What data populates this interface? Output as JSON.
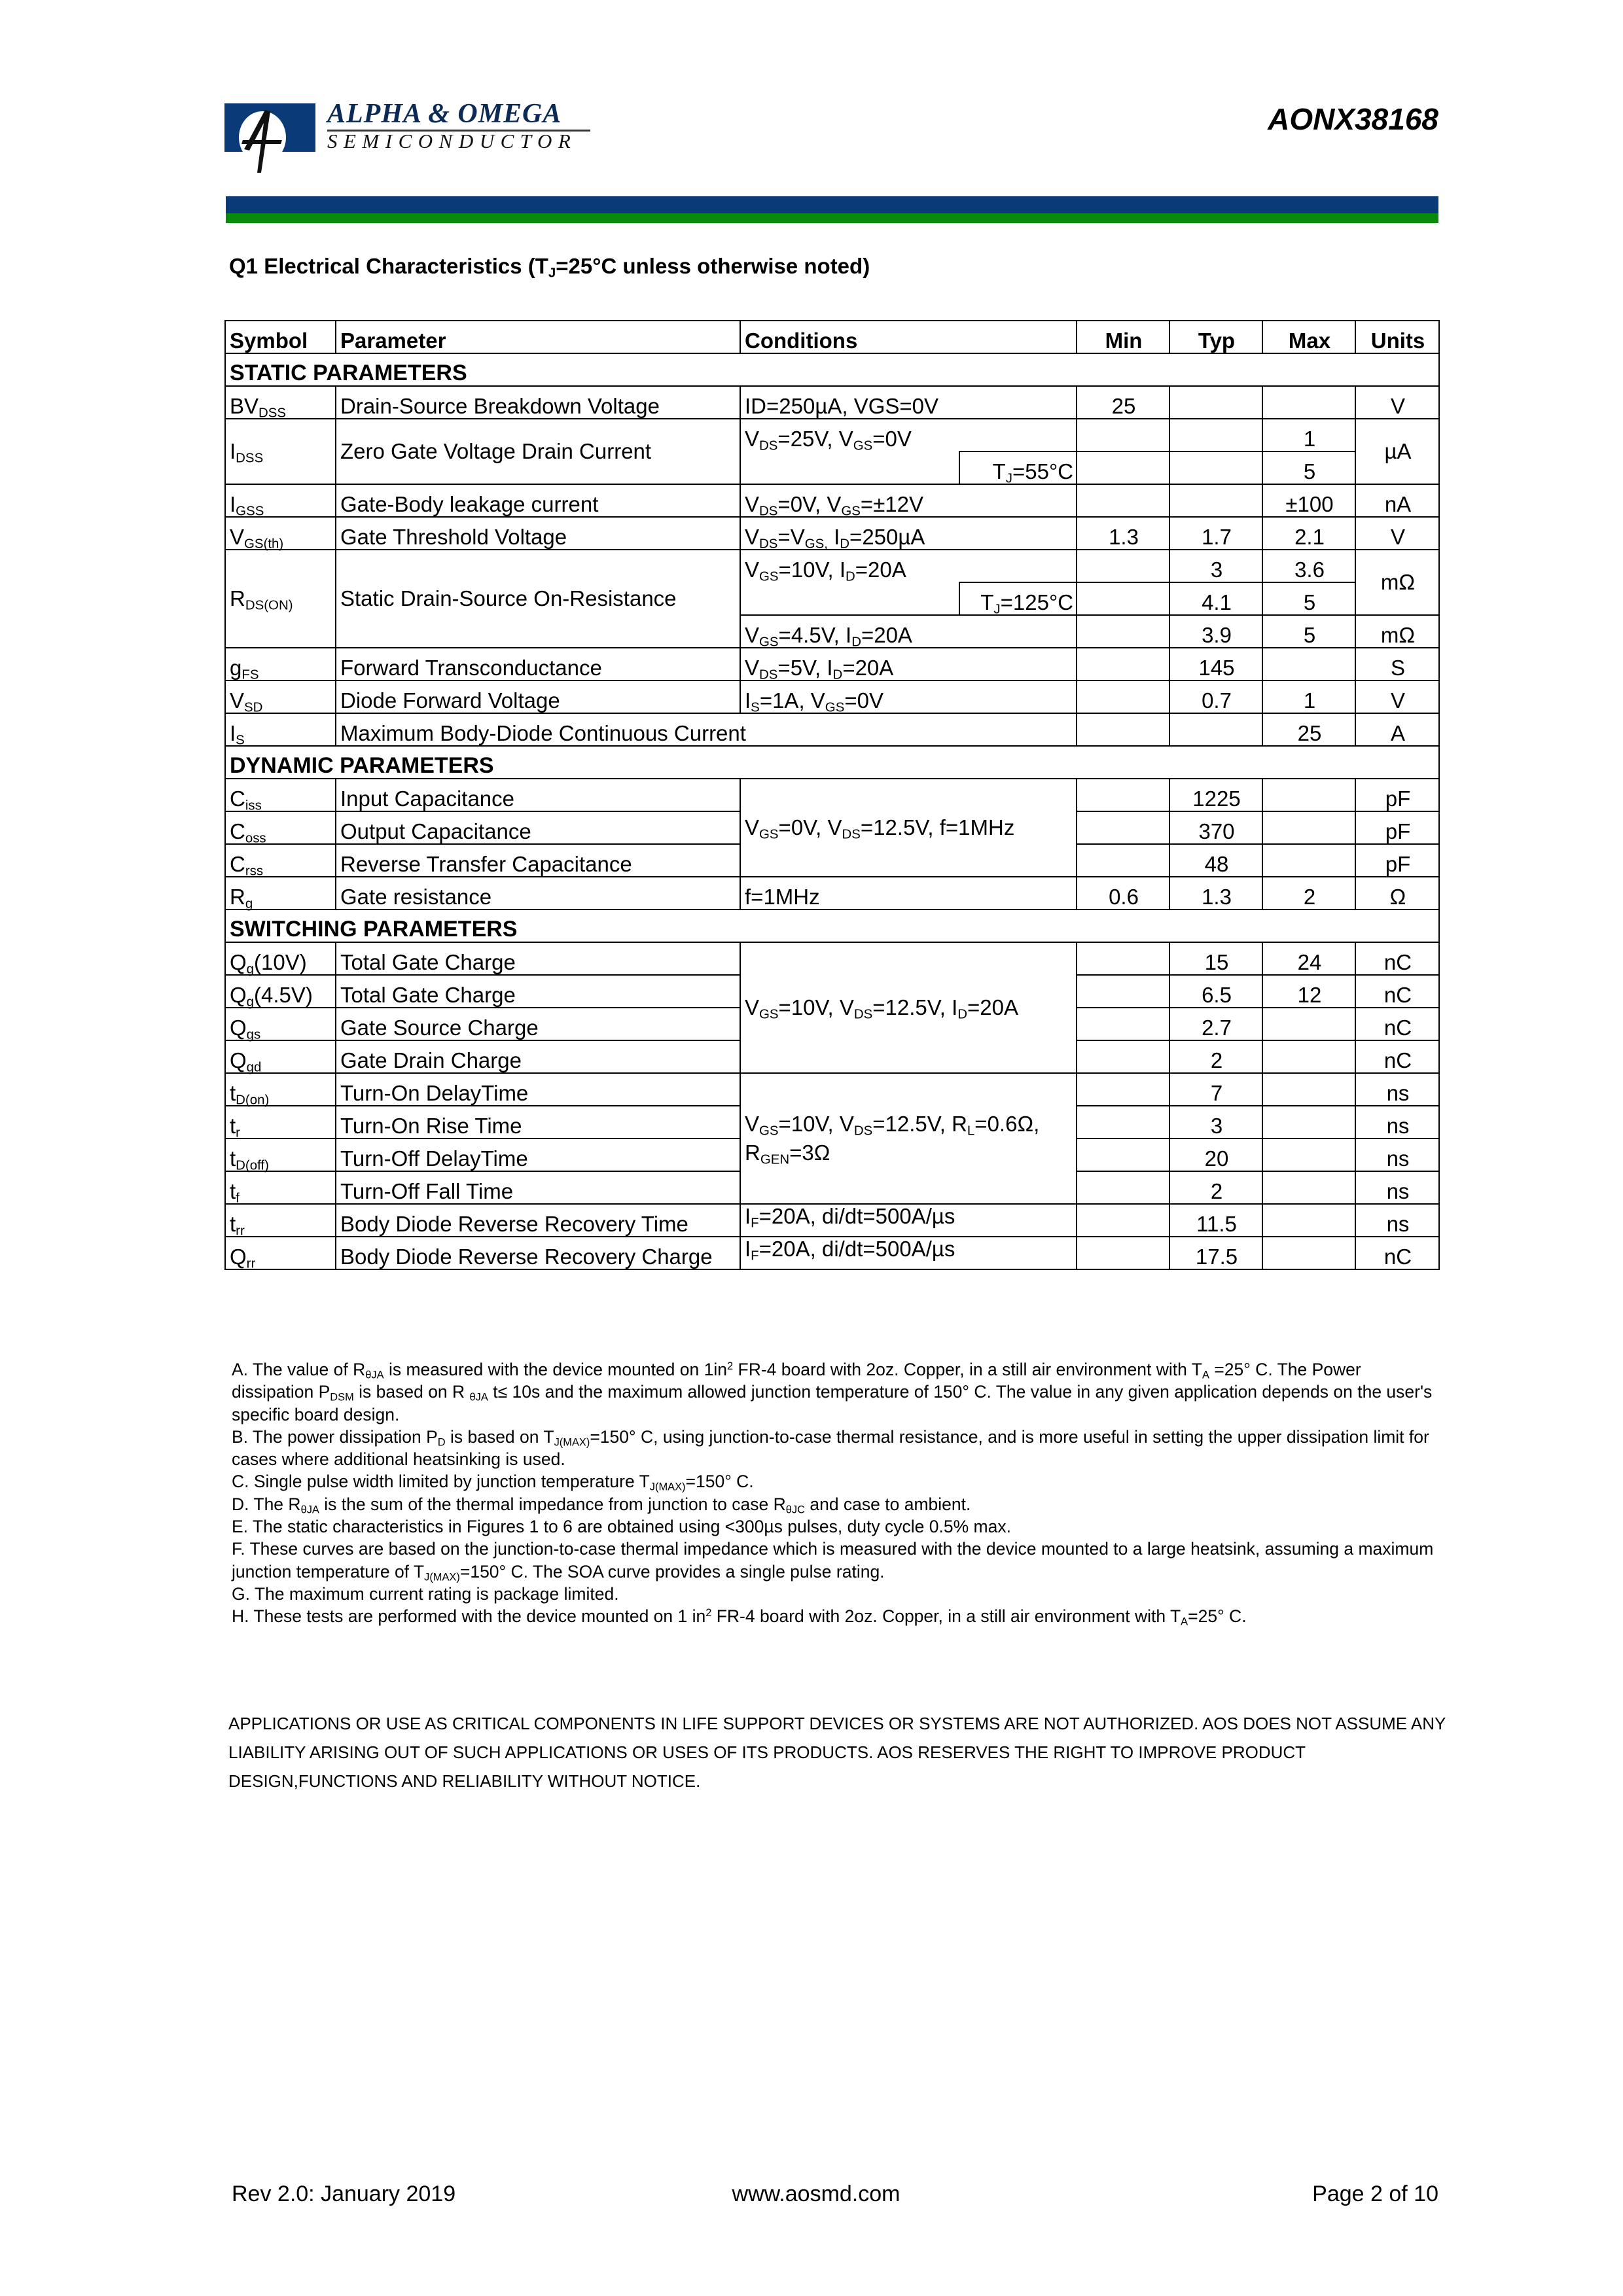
{
  "header": {
    "logo_name": "ALPHA & OMEGA",
    "logo_sub": "SEMICONDUCTOR",
    "part_number": "AONX38168",
    "colors": {
      "brand_blue": "#0b3a78",
      "brand_green": "#0a8a0a"
    }
  },
  "section_title": "Q1 Electrical Characteristics (T_{J}=25°C unless otherwise noted)",
  "table": {
    "headers": {
      "symbol": "Symbol",
      "parameter": "Parameter",
      "conditions": "Conditions",
      "min": "Min",
      "typ": "Typ",
      "max": "Max",
      "units": "Units"
    },
    "sections": {
      "static": "STATIC PARAMETERS",
      "dynamic": "DYNAMIC PARAMETERS",
      "switching": "SWITCHING PARAMETERS"
    },
    "rows": {
      "bvdss": {
        "symbol": "BV_{DSS}",
        "parameter": "Drain-Source Breakdown Voltage",
        "conditions": "ID=250µA, VGS=0V",
        "min": "25",
        "units": "V"
      },
      "idss": {
        "symbol": "I_{DSS}",
        "parameter": "Zero Gate Voltage Drain Current",
        "conditions": "V_{DS}=25V, V_{GS}=0V",
        "max": "1",
        "units": "µA"
      },
      "idss_hot": {
        "conditions_tj": "T_{J}=55°C",
        "max": "5"
      },
      "igss": {
        "symbol": "I_{GSS}",
        "parameter": "Gate-Body leakage current",
        "conditions": "V_{DS}=0V, V_{GS}=±12V",
        "max": "±100",
        "units": "nA"
      },
      "vgsth": {
        "symbol": "V_{GS(th)}",
        "parameter": "Gate Threshold Voltage",
        "conditions": "V_{DS}=V_{GS,} I_{D}=250µA",
        "min": "1.3",
        "typ": "1.7",
        "max": "2.1",
        "units": "V"
      },
      "rdson": {
        "symbol": "R_{DS(ON)}",
        "parameter": "Static Drain-Source On-Resistance",
        "conditions": "V_{GS}=10V, I_{D}=20A",
        "typ": "3",
        "max": "3.6",
        "units": "mΩ"
      },
      "rdson_hot": {
        "conditions_tj": "T_{J}=125°C",
        "typ": "4.1",
        "max": "5"
      },
      "rdson_45": {
        "conditions": "V_{GS}=4.5V, I_{D}=20A",
        "typ": "3.9",
        "max": "5",
        "units": "mΩ"
      },
      "gfs": {
        "symbol": "g_{FS}",
        "parameter": "Forward Transconductance",
        "conditions": "V_{DS}=5V, I_{D}=20A",
        "typ": "145",
        "units": "S"
      },
      "vsd": {
        "symbol": "V_{SD}",
        "parameter": "Diode Forward Voltage",
        "conditions": "I_{S}=1A, V_{GS}=0V",
        "typ": "0.7",
        "max": "1",
        "units": "V"
      },
      "is": {
        "symbol": "I_{S}",
        "parameter": "Maximum Body-Diode Continuous Current",
        "max": "25",
        "units": "A"
      },
      "ciss": {
        "symbol": "C_{iss}",
        "parameter": "Input Capacitance",
        "conditions": "V_{GS}=0V, V_{DS}=12.5V, f=1MHz",
        "typ": "1225",
        "units": "pF"
      },
      "coss": {
        "symbol": "C_{oss}",
        "parameter": "Output Capacitance",
        "typ": "370",
        "units": "pF"
      },
      "crss": {
        "symbol": "C_{rss}",
        "parameter": "Reverse Transfer Capacitance",
        "typ": "48",
        "units": "pF"
      },
      "rg": {
        "symbol": "R_{g}",
        "parameter": "Gate resistance",
        "conditions": "f=1MHz",
        "min": "0.6",
        "typ": "1.3",
        "max": "2",
        "units": "Ω"
      },
      "qg10": {
        "symbol": "Q_{g}(10V)",
        "parameter": "Total Gate Charge",
        "conditions": "V_{GS}=10V, V_{DS}=12.5V, I_{D}=20A",
        "typ": "15",
        "max": "24",
        "units": "nC"
      },
      "qg45": {
        "symbol": "Q_{g}(4.5V)",
        "parameter": "Total Gate Charge",
        "typ": "6.5",
        "max": "12",
        "units": "nC"
      },
      "qgs": {
        "symbol": "Q_{gs}",
        "parameter": "Gate Source Charge",
        "typ": "2.7",
        "units": "nC"
      },
      "qgd": {
        "symbol": "Q_{gd}",
        "parameter": "Gate Drain Charge",
        "typ": "2",
        "units": "nC"
      },
      "tdon": {
        "symbol": "t_{D(on)}",
        "parameter": "Turn-On DelayTime",
        "conditions": "V_{GS}=10V, V_{DS}=12.5V, R_{L}=0.6Ω,",
        "conditions_2": "R_{GEN}=3Ω",
        "typ": "7",
        "units": "ns"
      },
      "tr": {
        "symbol": "t_{r}",
        "parameter": "Turn-On Rise Time",
        "typ": "3",
        "units": "ns"
      },
      "tdoff": {
        "symbol": "t_{D(off)}",
        "parameter": "Turn-Off DelayTime",
        "typ": "20",
        "units": "ns"
      },
      "tf": {
        "symbol": "t_{f}",
        "parameter": "Turn-Off Fall Time",
        "typ": "2",
        "units": "ns"
      },
      "trr": {
        "symbol": "t_{rr}",
        "parameter": "Body Diode Reverse Recovery Time",
        "conditions": "I_{F}=20A, di/dt=500A/µs",
        "typ": "11.5",
        "units": "ns"
      },
      "qrr": {
        "symbol": "Q_{rr}",
        "parameter": "Body Diode Reverse Recovery Charge",
        "conditions": "I_{F}=20A, di/dt=500A/µs",
        "typ": "17.5",
        "units": "nC"
      }
    }
  },
  "notes": [
    "A. The value of R_{θJA} is measured with the device mounted on 1in^{2} FR-4 board with 2oz. Copper, in a still air environment with T_{A} =25° C. The Power dissipation P_{DSM} is based on R _{θJA} t≤ 10s and the maximum allowed junction temperature of 150° C. The value in any given application depends on the user's specific board design.",
    "B. The power dissipation P_{D} is based on T_{J(MAX)}=150° C, using junction-to-case thermal resistance, and is more useful in setting the upper dissipation limit for cases where additional heatsinking is used.",
    "C. Single pulse width limited by junction temperature T_{J(MAX)}=150° C.",
    "D. The R_{θJA} is the sum of the thermal impedance from junction to case R_{θJC} and case to ambient.",
    "E. The static characteristics in Figures 1 to 6 are obtained using <300µs pulses, duty cycle 0.5% max.",
    "F. These curves are based on the junction-to-case thermal impedance which is measured with the device mounted to a large heatsink, assuming a maximum junction temperature of T_{J(MAX)}=150° C. The SOA curve provides a single pulse rating.",
    "G. The maximum current rating is package limited.",
    "H. These tests are performed with the device mounted on 1 in^{2} FR-4 board with 2oz. Copper, in a still air environment with T_{A}=25° C."
  ],
  "disclaimer": "APPLICATIONS OR USE AS CRITICAL COMPONENTS IN LIFE SUPPORT DEVICES OR SYSTEMS ARE NOT AUTHORIZED. AOS DOES NOT ASSUME ANY LIABILITY ARISING OUT OF SUCH APPLICATIONS OR USES OF ITS PRODUCTS.  AOS RESERVES THE RIGHT TO IMPROVE PRODUCT DESIGN,FUNCTIONS AND RELIABILITY WITHOUT NOTICE.",
  "footer": {
    "revision": "Rev 2.0: January 2019",
    "website": "www.aosmd.com",
    "page": "Page 2 of 10"
  }
}
